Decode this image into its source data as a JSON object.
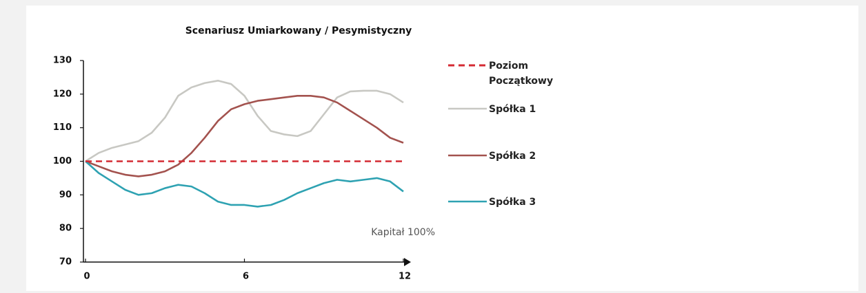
{
  "chart_data": {
    "type": "line",
    "title": "Scenariusz  Umiarkowany / Pesymistyczny",
    "x": [
      0,
      0.5,
      1,
      1.5,
      2,
      2.5,
      3,
      3.5,
      4,
      4.5,
      5,
      5.5,
      6,
      6.5,
      7,
      7.5,
      8,
      8.5,
      9,
      9.5,
      10,
      10.5,
      11,
      11.5,
      12
    ],
    "series": [
      {
        "name": "Poziom Początkowy",
        "color": "#d42a32",
        "dashed": true,
        "x": [
          0,
          12
        ],
        "values": [
          100,
          100
        ]
      },
      {
        "name": "Spółka 1",
        "color": "#c8c8c3",
        "values": [
          100,
          102.5,
          104,
          105,
          106,
          108.5,
          113,
          119.5,
          122,
          123.3,
          124,
          123,
          119.5,
          113.5,
          109,
          108,
          107.5,
          109,
          114,
          119,
          120.8,
          121,
          121,
          120,
          117.5
        ]
      },
      {
        "name": "Spółka 2",
        "color": "#a3524e",
        "values": [
          100,
          98.5,
          97,
          96,
          95.5,
          96,
          97,
          99,
          102.5,
          107,
          112,
          115.5,
          117,
          118,
          118.5,
          119,
          119.5,
          119.5,
          119,
          117.5,
          115,
          112.5,
          110,
          107,
          105.5
        ]
      },
      {
        "name": "Spółka 3",
        "color": "#2ea2b2",
        "values": [
          100,
          96.5,
          94,
          91.5,
          90,
          90.5,
          92,
          93,
          92.5,
          90.5,
          88,
          87,
          87,
          86.5,
          87,
          88.5,
          90.5,
          92,
          93.5,
          94.5,
          94,
          94.5,
          95,
          94,
          91
        ]
      }
    ],
    "annotation": "Kapitał 100%",
    "xlim": [
      0,
      12
    ],
    "xticks": [
      0,
      6,
      12
    ],
    "ylim": [
      70,
      130
    ],
    "yticks": [
      70,
      80,
      90,
      100,
      110,
      120,
      130
    ]
  }
}
